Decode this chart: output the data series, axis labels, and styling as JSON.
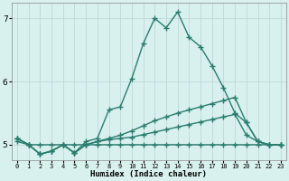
{
  "xlabel": "Humidex (Indice chaleur)",
  "x": [
    0,
    1,
    2,
    3,
    4,
    5,
    6,
    7,
    8,
    9,
    10,
    11,
    12,
    13,
    14,
    15,
    16,
    17,
    18,
    19,
    20,
    21,
    22,
    23
  ],
  "line1": [
    5.1,
    5.0,
    4.85,
    4.9,
    5.0,
    4.87,
    5.05,
    5.1,
    5.55,
    5.6,
    6.05,
    6.6,
    7.0,
    6.85,
    7.1,
    6.7,
    6.55,
    6.25,
    5.9,
    5.5,
    5.35,
    5.05,
    5.0,
    5.0
  ],
  "line2": [
    5.1,
    5.0,
    4.85,
    4.9,
    5.0,
    4.87,
    5.0,
    5.05,
    5.1,
    5.15,
    5.22,
    5.3,
    5.38,
    5.44,
    5.5,
    5.55,
    5.6,
    5.65,
    5.7,
    5.75,
    5.35,
    5.05,
    5.0,
    5.0
  ],
  "line3": [
    5.1,
    5.0,
    4.85,
    4.9,
    5.0,
    4.87,
    5.0,
    5.05,
    5.08,
    5.1,
    5.12,
    5.16,
    5.2,
    5.24,
    5.28,
    5.32,
    5.36,
    5.4,
    5.44,
    5.48,
    5.15,
    5.05,
    5.0,
    5.0
  ],
  "line4": [
    5.05,
    5.0,
    5.0,
    5.0,
    5.0,
    5.0,
    5.0,
    5.0,
    5.0,
    5.0,
    5.0,
    5.0,
    5.0,
    5.0,
    5.0,
    5.0,
    5.0,
    5.0,
    5.0,
    5.0,
    5.0,
    5.0,
    5.0,
    5.0
  ],
  "line_color": "#2a7d6e",
  "bg_color": "#d8f0ee",
  "grid_color": "#c0d8d8",
  "ylim": [
    4.75,
    7.25
  ],
  "yticks": [
    5,
    6,
    7
  ],
  "marker": "+",
  "markersize": 4,
  "linewidth": 1.0
}
